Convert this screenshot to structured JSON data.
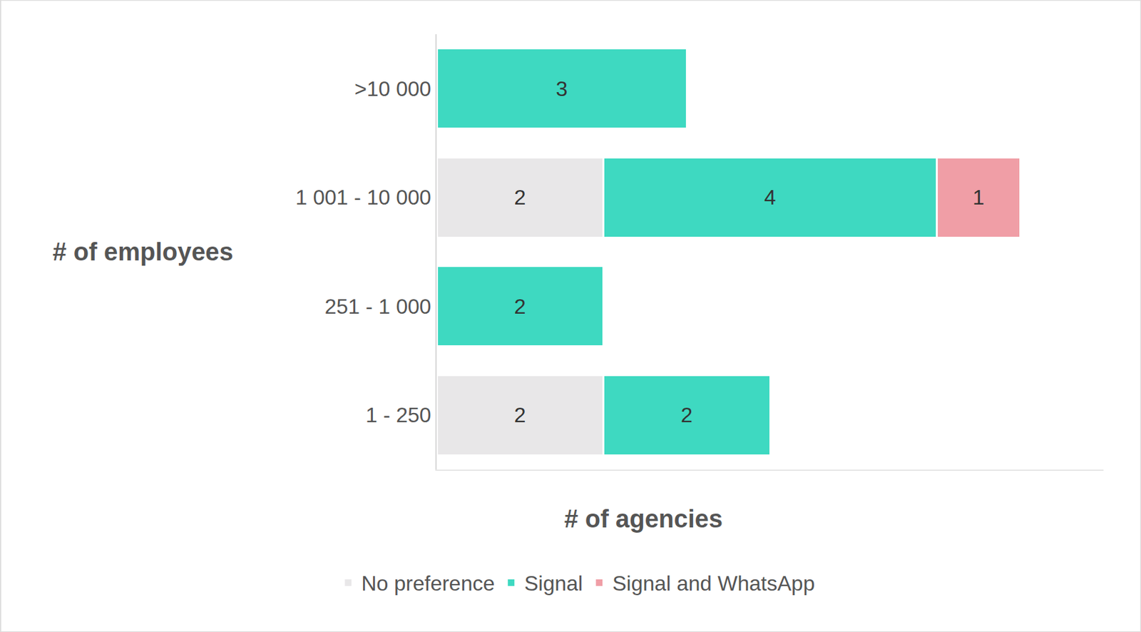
{
  "chart_data": {
    "type": "bar",
    "orientation": "horizontal",
    "stacked": true,
    "data_labels": true,
    "tick_labels": "y",
    "grid": false,
    "legend": "bottom",
    "x_label": "# of agencies",
    "y_label": "# of employees",
    "categories": [
      ">10 000",
      "1 001 - 10 000",
      "251 - 1 000",
      "1 - 250"
    ],
    "xlim": [
      0,
      8
    ],
    "xticks": [],
    "series": [
      {
        "name": "No preference",
        "color": "#e8e7e8",
        "values": [
          null,
          2,
          null,
          2
        ]
      },
      {
        "name": "Signal",
        "color": "#3ed9c1",
        "values": [
          3,
          4,
          2,
          2
        ]
      },
      {
        "name": "Signal and WhatsApp",
        "color": "#f09ea6",
        "values": [
          null,
          1,
          null,
          null
        ]
      }
    ]
  }
}
